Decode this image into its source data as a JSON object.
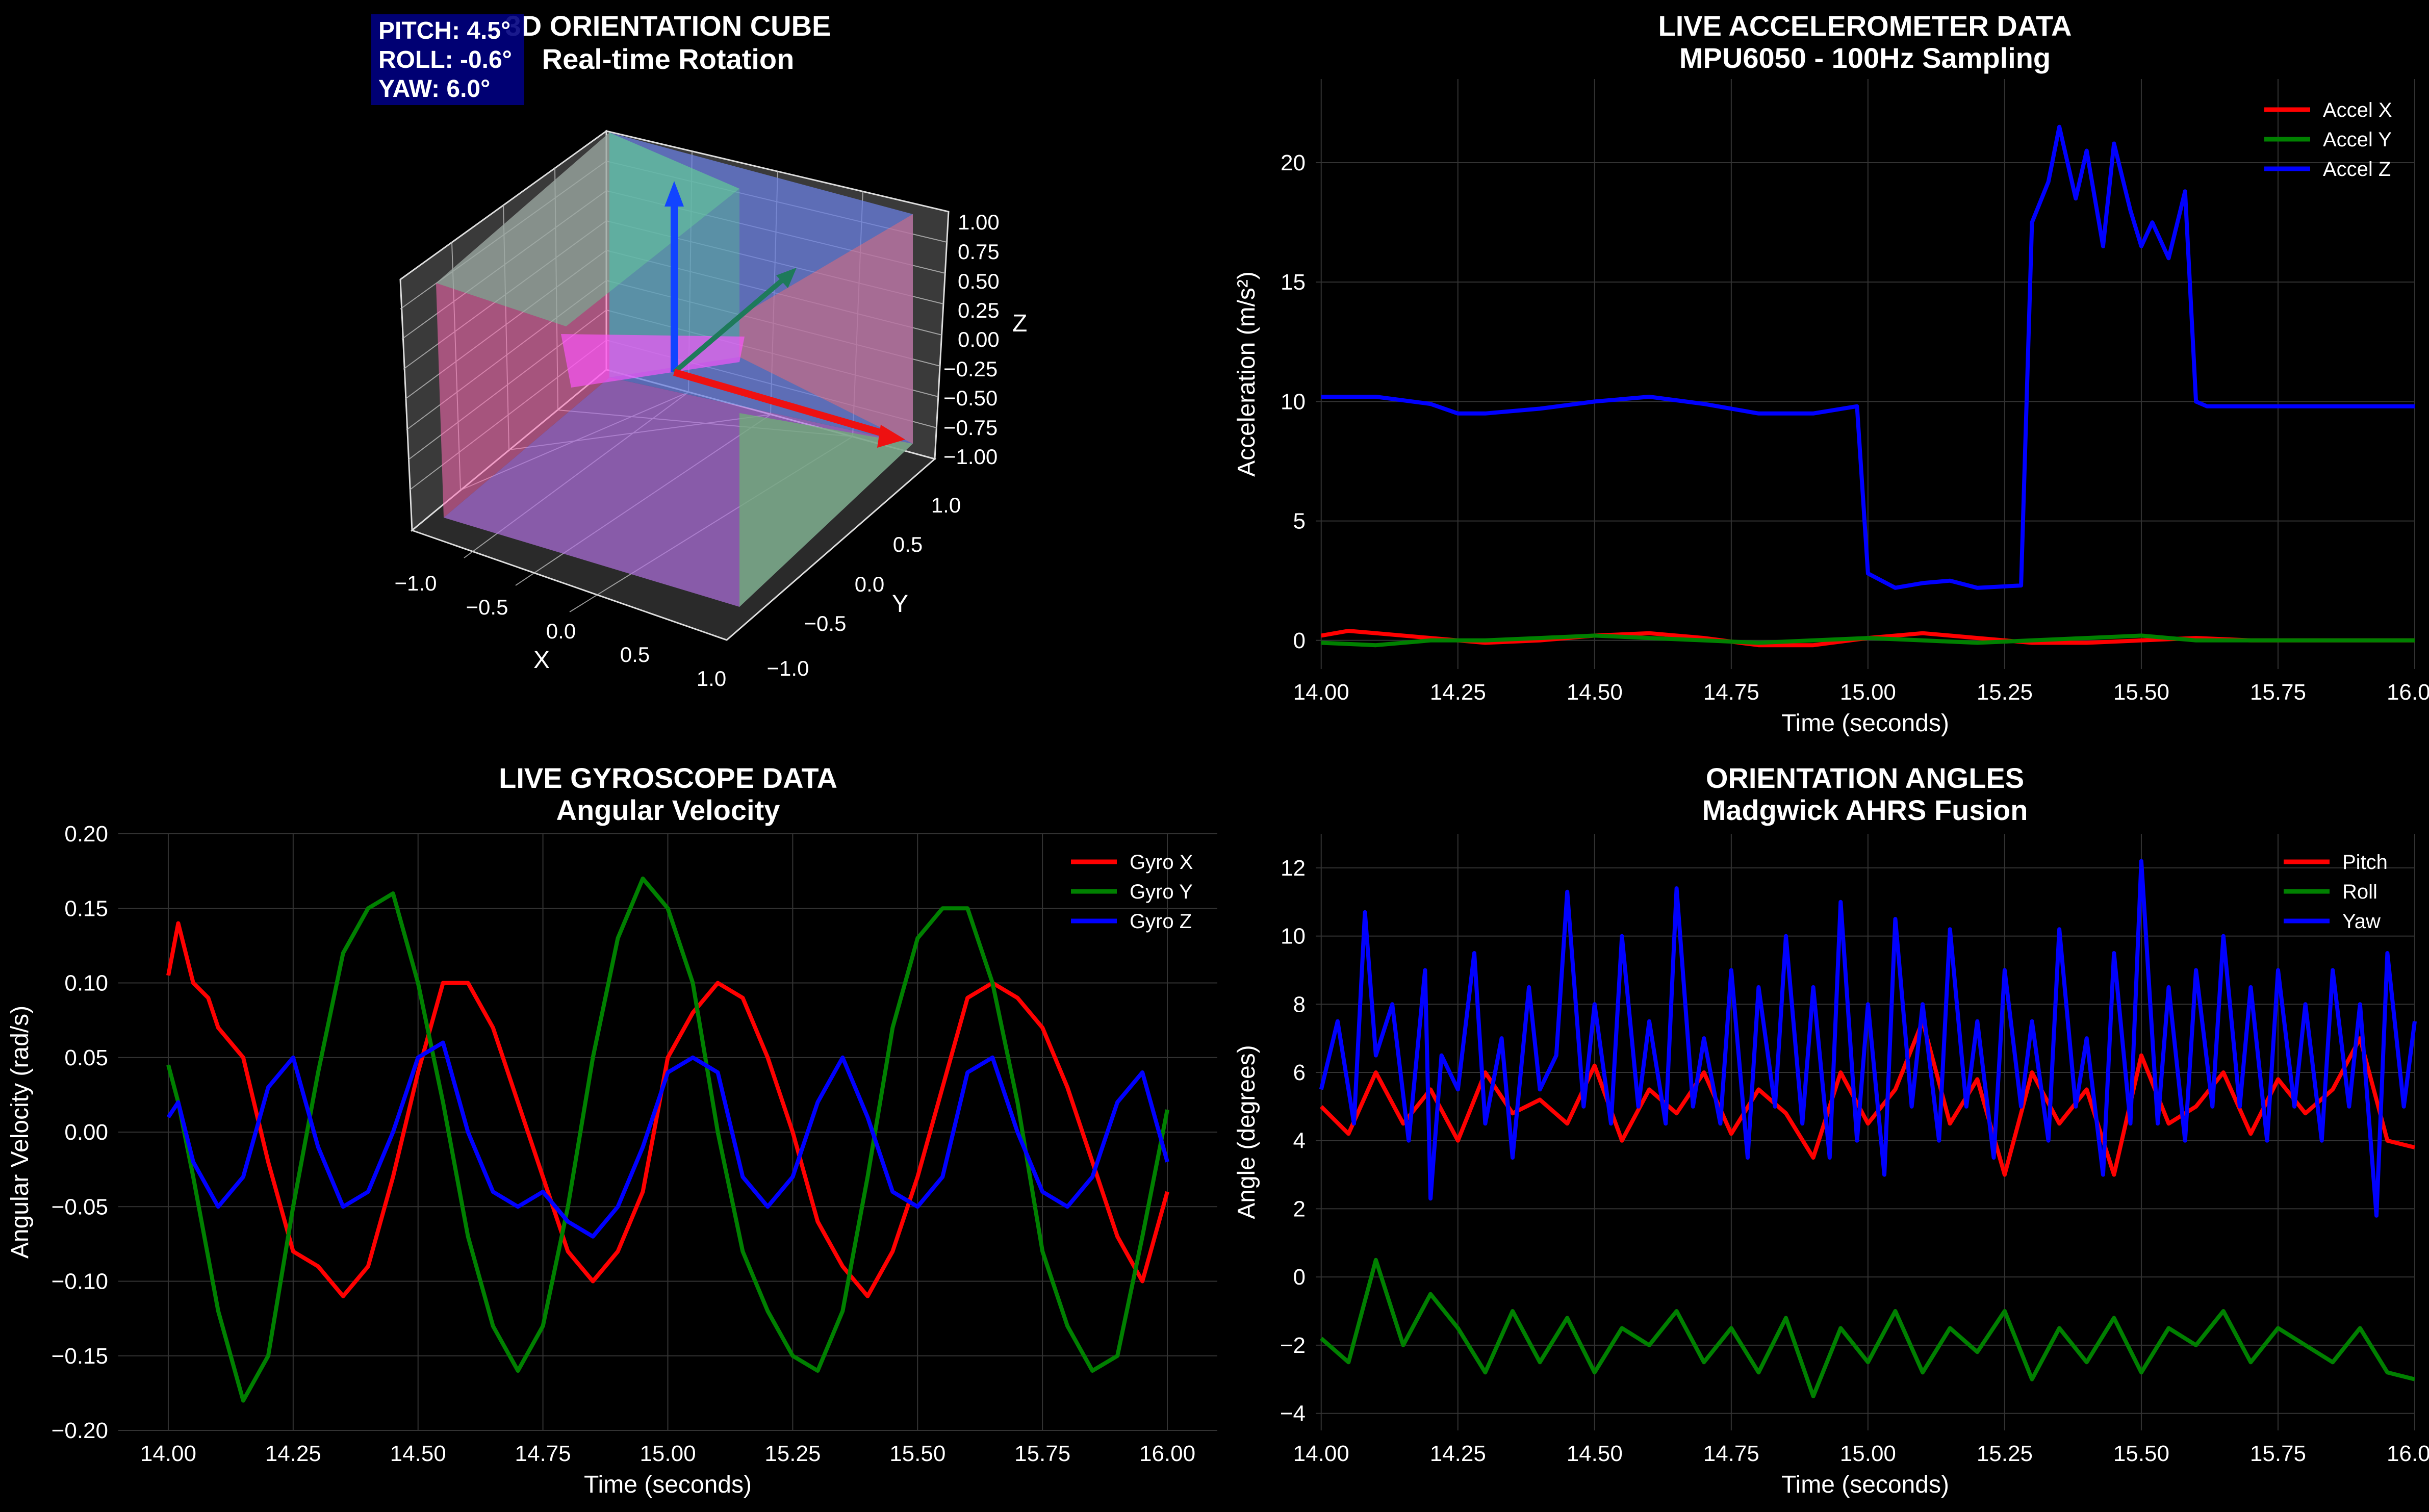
{
  "colors": {
    "background": "#000000",
    "red": "#ff0000",
    "green": "#008000",
    "blue": "#0000ff",
    "grid": "#333333",
    "text": "#ffffff",
    "overlay_box": "#000080"
  },
  "cube": {
    "title": "3D ORIENTATION CUBE",
    "subtitle": "Real-time Rotation",
    "overlay": [
      "PITCH: 4.5°",
      "ROLL: -0.6°",
      "YAW: 6.0°"
    ],
    "xlabel": "X",
    "ylabel": "Y",
    "zlabel": "Z",
    "x_ticks": [
      "−1.0",
      "−0.5",
      "0.0",
      "0.5",
      "1.0"
    ],
    "y_ticks": [
      "1.0",
      "0.5",
      "0.0",
      "−0.5",
      "−1.0"
    ],
    "z_ticks": [
      "1.00",
      "0.75",
      "0.50",
      "0.25",
      "0.00",
      "−0.25",
      "−0.50",
      "−0.75",
      "−1.00"
    ]
  },
  "chart_data": [
    {
      "id": "accel",
      "type": "line",
      "title": "LIVE ACCELEROMETER DATA",
      "subtitle": "MPU6050 - 100Hz Sampling",
      "xlabel": "Time (seconds)",
      "ylabel": "Acceleration (m/s²)",
      "xlim": [
        13.99,
        16.0
      ],
      "ylim": [
        -1.2,
        23.5
      ],
      "xticks": [
        14.0,
        14.25,
        14.5,
        14.75,
        15.0,
        15.25,
        15.5,
        15.75,
        16.0
      ],
      "xtick_labels": [
        "14.00",
        "14.25",
        "14.50",
        "14.75",
        "15.00",
        "15.25",
        "15.50",
        "15.75",
        "16.00"
      ],
      "yticks": [
        0,
        5,
        10,
        15,
        20
      ],
      "ytick_labels": [
        "0",
        "5",
        "10",
        "15",
        "20"
      ],
      "grid": true,
      "legend": "top-right",
      "series": [
        {
          "name": "Accel X",
          "color": "#ff0000",
          "x": [
            14.0,
            14.05,
            14.1,
            14.2,
            14.3,
            14.4,
            14.5,
            14.6,
            14.7,
            14.8,
            14.9,
            15.0,
            15.1,
            15.2,
            15.3,
            15.4,
            15.5,
            15.6,
            15.7,
            15.8,
            15.9,
            16.0
          ],
          "y": [
            0.2,
            0.4,
            0.3,
            0.1,
            -0.1,
            0.0,
            0.2,
            0.3,
            0.1,
            -0.2,
            -0.2,
            0.1,
            0.3,
            0.1,
            -0.1,
            -0.1,
            0.0,
            0.1,
            0.0,
            0.0,
            0.0,
            0.0
          ]
        },
        {
          "name": "Accel Y",
          "color": "#008000",
          "x": [
            14.0,
            14.1,
            14.2,
            14.3,
            14.4,
            14.5,
            14.6,
            14.7,
            14.8,
            14.9,
            15.0,
            15.1,
            15.2,
            15.3,
            15.4,
            15.5,
            15.6,
            15.7,
            15.8,
            15.9,
            16.0
          ],
          "y": [
            -0.1,
            -0.2,
            0.0,
            0.0,
            0.1,
            0.2,
            0.1,
            0.0,
            -0.1,
            0.0,
            0.1,
            0.0,
            -0.1,
            0.0,
            0.1,
            0.2,
            0.0,
            0.0,
            0.0,
            0.0,
            0.0
          ]
        },
        {
          "name": "Accel Z",
          "color": "#0000ff",
          "x": [
            14.0,
            14.1,
            14.2,
            14.25,
            14.3,
            14.4,
            14.5,
            14.6,
            14.7,
            14.8,
            14.9,
            14.98,
            15.0,
            15.05,
            15.1,
            15.15,
            15.2,
            15.28,
            15.3,
            15.33,
            15.35,
            15.38,
            15.4,
            15.43,
            15.45,
            15.48,
            15.5,
            15.52,
            15.55,
            15.58,
            15.6,
            15.62,
            15.7,
            15.8,
            15.9,
            16.0
          ],
          "y": [
            10.2,
            10.2,
            9.9,
            9.5,
            9.5,
            9.7,
            10.0,
            10.2,
            9.9,
            9.5,
            9.5,
            9.8,
            2.8,
            2.2,
            2.4,
            2.5,
            2.2,
            2.3,
            17.5,
            19.2,
            21.5,
            18.5,
            20.5,
            16.5,
            20.8,
            18.0,
            16.5,
            17.5,
            16.0,
            18.8,
            10.0,
            9.8,
            9.8,
            9.8,
            9.8,
            9.8
          ]
        }
      ]
    },
    {
      "id": "gyro",
      "type": "line",
      "title": "LIVE GYROSCOPE DATA",
      "subtitle": "Angular Velocity",
      "xlabel": "Time (seconds)",
      "ylabel": "Angular Velocity (rad/s)",
      "xlim": [
        13.9,
        16.1
      ],
      "ylim": [
        -0.2,
        0.2
      ],
      "xticks": [
        14.0,
        14.25,
        14.5,
        14.75,
        15.0,
        15.25,
        15.5,
        15.75,
        16.0
      ],
      "xtick_labels": [
        "14.00",
        "14.25",
        "14.50",
        "14.75",
        "15.00",
        "15.25",
        "15.50",
        "15.75",
        "16.00"
      ],
      "yticks": [
        -0.2,
        -0.15,
        -0.1,
        -0.05,
        0.0,
        0.05,
        0.1,
        0.15,
        0.2
      ],
      "ytick_labels": [
        "−0.20",
        "−0.15",
        "−0.10",
        "−0.05",
        "0.00",
        "0.05",
        "0.10",
        "0.15",
        "0.20"
      ],
      "grid": true,
      "legend": "top-right",
      "series": [
        {
          "name": "Gyro X",
          "color": "#ff0000",
          "x": [
            14.0,
            14.02,
            14.05,
            14.08,
            14.1,
            14.15,
            14.2,
            14.25,
            14.3,
            14.35,
            14.4,
            14.45,
            14.5,
            14.55,
            14.6,
            14.65,
            14.7,
            14.75,
            14.8,
            14.85,
            14.9,
            14.95,
            15.0,
            15.05,
            15.1,
            15.15,
            15.2,
            15.25,
            15.3,
            15.35,
            15.4,
            15.45,
            15.5,
            15.55,
            15.6,
            15.65,
            15.7,
            15.75,
            15.8,
            15.85,
            15.9,
            15.95,
            16.0
          ],
          "y": [
            0.105,
            0.14,
            0.1,
            0.09,
            0.07,
            0.05,
            -0.02,
            -0.08,
            -0.09,
            -0.11,
            -0.09,
            -0.03,
            0.04,
            0.1,
            0.1,
            0.07,
            0.02,
            -0.03,
            -0.08,
            -0.1,
            -0.08,
            -0.04,
            0.05,
            0.08,
            0.1,
            0.09,
            0.05,
            0.0,
            -0.06,
            -0.09,
            -0.11,
            -0.08,
            -0.03,
            0.03,
            0.09,
            0.1,
            0.09,
            0.07,
            0.03,
            -0.02,
            -0.07,
            -0.1,
            -0.04
          ]
        },
        {
          "name": "Gyro Y",
          "color": "#008000",
          "x": [
            14.0,
            14.02,
            14.05,
            14.1,
            14.15,
            14.2,
            14.25,
            14.3,
            14.35,
            14.4,
            14.45,
            14.5,
            14.55,
            14.6,
            14.65,
            14.7,
            14.75,
            14.8,
            14.85,
            14.9,
            14.95,
            15.0,
            15.05,
            15.1,
            15.15,
            15.2,
            15.25,
            15.3,
            15.35,
            15.4,
            15.45,
            15.5,
            15.55,
            15.6,
            15.65,
            15.7,
            15.75,
            15.8,
            15.85,
            15.9,
            15.95,
            16.0
          ],
          "y": [
            0.045,
            0.02,
            -0.03,
            -0.12,
            -0.18,
            -0.15,
            -0.05,
            0.04,
            0.12,
            0.15,
            0.16,
            0.1,
            0.02,
            -0.07,
            -0.13,
            -0.16,
            -0.13,
            -0.05,
            0.05,
            0.13,
            0.17,
            0.15,
            0.1,
            0.0,
            -0.08,
            -0.12,
            -0.15,
            -0.16,
            -0.12,
            -0.03,
            0.07,
            0.13,
            0.15,
            0.15,
            0.1,
            0.02,
            -0.08,
            -0.13,
            -0.16,
            -0.15,
            -0.07,
            0.015
          ]
        },
        {
          "name": "Gyro Z",
          "color": "#0000ff",
          "x": [
            14.0,
            14.02,
            14.05,
            14.1,
            14.15,
            14.2,
            14.25,
            14.3,
            14.35,
            14.4,
            14.45,
            14.5,
            14.55,
            14.6,
            14.65,
            14.7,
            14.75,
            14.8,
            14.85,
            14.9,
            14.95,
            15.0,
            15.05,
            15.1,
            15.15,
            15.2,
            15.25,
            15.3,
            15.35,
            15.4,
            15.45,
            15.5,
            15.55,
            15.6,
            15.65,
            15.7,
            15.75,
            15.8,
            15.85,
            15.9,
            15.95,
            16.0
          ],
          "y": [
            0.01,
            0.02,
            -0.02,
            -0.05,
            -0.03,
            0.03,
            0.05,
            -0.01,
            -0.05,
            -0.04,
            0.0,
            0.05,
            0.06,
            0.0,
            -0.04,
            -0.05,
            -0.04,
            -0.06,
            -0.07,
            -0.05,
            -0.01,
            0.04,
            0.05,
            0.04,
            -0.03,
            -0.05,
            -0.03,
            0.02,
            0.05,
            0.01,
            -0.04,
            -0.05,
            -0.03,
            0.04,
            0.05,
            0.0,
            -0.04,
            -0.05,
            -0.03,
            0.02,
            0.04,
            -0.02
          ]
        }
      ]
    },
    {
      "id": "orient",
      "type": "line",
      "title": "ORIENTATION ANGLES",
      "subtitle": "Madgwick AHRS Fusion",
      "xlabel": "Time (seconds)",
      "ylabel": "Angle (degrees)",
      "xlim": [
        13.99,
        16.0
      ],
      "ylim": [
        -4.5,
        13.0
      ],
      "xticks": [
        14.0,
        14.25,
        14.5,
        14.75,
        15.0,
        15.25,
        15.5,
        15.75,
        16.0
      ],
      "xtick_labels": [
        "14.00",
        "14.25",
        "14.50",
        "14.75",
        "15.00",
        "15.25",
        "15.50",
        "15.75",
        "16.00"
      ],
      "yticks": [
        -4,
        -2,
        0,
        2,
        4,
        6,
        8,
        10,
        12
      ],
      "ytick_labels": [
        "−4",
        "−2",
        "0",
        "2",
        "4",
        "6",
        "8",
        "10",
        "12"
      ],
      "grid": true,
      "legend": "top-right",
      "series": [
        {
          "name": "Pitch",
          "color": "#ff0000",
          "x": [
            14.0,
            14.05,
            14.1,
            14.15,
            14.2,
            14.25,
            14.3,
            14.35,
            14.4,
            14.45,
            14.5,
            14.55,
            14.6,
            14.65,
            14.7,
            14.75,
            14.8,
            14.85,
            14.9,
            14.95,
            15.0,
            15.05,
            15.1,
            15.15,
            15.2,
            15.25,
            15.3,
            15.35,
            15.4,
            15.45,
            15.5,
            15.55,
            15.6,
            15.65,
            15.7,
            15.75,
            15.8,
            15.85,
            15.9,
            15.95,
            16.0
          ],
          "y": [
            5.0,
            4.2,
            6.0,
            4.5,
            5.5,
            4.0,
            6.0,
            4.8,
            5.2,
            4.5,
            6.2,
            4.0,
            5.5,
            4.8,
            6.0,
            4.2,
            5.5,
            4.8,
            3.5,
            6.0,
            4.5,
            5.5,
            7.5,
            4.5,
            5.8,
            3.0,
            6.0,
            4.5,
            5.5,
            3.0,
            6.5,
            4.5,
            5.0,
            6.0,
            4.2,
            5.8,
            4.8,
            5.5,
            7.0,
            4.0,
            3.8
          ]
        },
        {
          "name": "Roll",
          "color": "#008000",
          "x": [
            14.0,
            14.05,
            14.1,
            14.15,
            14.2,
            14.25,
            14.3,
            14.35,
            14.4,
            14.45,
            14.5,
            14.55,
            14.6,
            14.65,
            14.7,
            14.75,
            14.8,
            14.85,
            14.9,
            14.95,
            15.0,
            15.05,
            15.1,
            15.15,
            15.2,
            15.25,
            15.3,
            15.35,
            15.4,
            15.45,
            15.5,
            15.55,
            15.6,
            15.65,
            15.7,
            15.75,
            15.8,
            15.85,
            15.9,
            15.95,
            16.0
          ],
          "y": [
            -1.8,
            -2.5,
            0.5,
            -2.0,
            -0.5,
            -1.5,
            -2.8,
            -1.0,
            -2.5,
            -1.2,
            -2.8,
            -1.5,
            -2.0,
            -1.0,
            -2.5,
            -1.5,
            -2.8,
            -1.2,
            -3.5,
            -1.5,
            -2.5,
            -1.0,
            -2.8,
            -1.5,
            -2.2,
            -1.0,
            -3.0,
            -1.5,
            -2.5,
            -1.2,
            -2.8,
            -1.5,
            -2.0,
            -1.0,
            -2.5,
            -1.5,
            -2.0,
            -2.5,
            -1.5,
            -2.8,
            -3.0
          ]
        },
        {
          "name": "Yaw",
          "color": "#0000ff",
          "x": [
            14.0,
            14.03,
            14.06,
            14.08,
            14.1,
            14.13,
            14.16,
            14.19,
            14.2,
            14.22,
            14.25,
            14.28,
            14.3,
            14.33,
            14.35,
            14.38,
            14.4,
            14.43,
            14.45,
            14.48,
            14.5,
            14.53,
            14.55,
            14.58,
            14.6,
            14.63,
            14.65,
            14.68,
            14.7,
            14.73,
            14.75,
            14.78,
            14.8,
            14.83,
            14.85,
            14.88,
            14.9,
            14.93,
            14.95,
            14.98,
            15.0,
            15.03,
            15.05,
            15.08,
            15.1,
            15.13,
            15.15,
            15.18,
            15.2,
            15.23,
            15.25,
            15.28,
            15.3,
            15.33,
            15.35,
            15.38,
            15.4,
            15.43,
            15.45,
            15.48,
            15.5,
            15.53,
            15.55,
            15.58,
            15.6,
            15.63,
            15.65,
            15.68,
            15.7,
            15.73,
            15.75,
            15.78,
            15.8,
            15.83,
            15.85,
            15.88,
            15.9,
            15.93,
            15.95,
            15.98,
            16.0
          ],
          "y": [
            5.5,
            7.5,
            4.5,
            10.7,
            6.5,
            8.0,
            4.0,
            9.0,
            2.3,
            6.5,
            5.5,
            9.5,
            4.5,
            7.0,
            3.5,
            8.5,
            5.5,
            6.5,
            11.3,
            5.0,
            8.0,
            4.5,
            10.0,
            5.0,
            7.5,
            4.5,
            11.4,
            5.0,
            7.0,
            4.5,
            9.0,
            3.5,
            8.5,
            5.0,
            10.0,
            4.5,
            8.5,
            3.5,
            11.0,
            4.0,
            8.0,
            3.0,
            10.5,
            5.0,
            8.0,
            4.0,
            10.2,
            5.0,
            7.5,
            3.5,
            9.0,
            5.0,
            7.5,
            4.0,
            10.2,
            5.0,
            7.0,
            3.0,
            9.5,
            4.5,
            12.2,
            4.5,
            8.5,
            4.0,
            9.0,
            5.0,
            10.0,
            5.0,
            8.5,
            4.0,
            9.0,
            5.0,
            8.0,
            4.0,
            9.0,
            5.0,
            8.0,
            1.8,
            9.5,
            5.0,
            7.5
          ]
        }
      ]
    }
  ]
}
